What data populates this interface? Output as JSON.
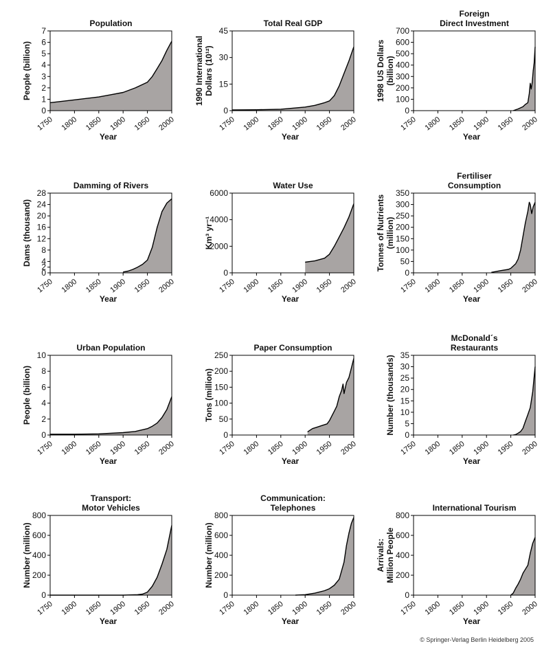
{
  "copyright": "© Springer-Verlag Berlin Heidelberg 2005",
  "style": {
    "fill_color": "#a8a4a3",
    "line_color": "#000000",
    "text_color": "#111111"
  },
  "chart_data": [
    {
      "type": "area",
      "title": [
        "Population"
      ],
      "ylabel": [
        "People (billion)"
      ],
      "xlabel": "Year",
      "xlim": [
        1750,
        2000
      ],
      "xticks": [
        1750,
        1800,
        1850,
        1900,
        1950,
        2000
      ],
      "ylim": [
        0,
        7
      ],
      "yticks": [
        0,
        1,
        2,
        3,
        4,
        5,
        6,
        7
      ],
      "x": [
        1750,
        1800,
        1850,
        1875,
        1900,
        1925,
        1950,
        1960,
        1970,
        1980,
        1990,
        2000
      ],
      "values": [
        0.7,
        0.95,
        1.2,
        1.4,
        1.6,
        2.0,
        2.5,
        3.0,
        3.7,
        4.4,
        5.3,
        6.1
      ]
    },
    {
      "type": "area",
      "title": [
        "Total Real GDP"
      ],
      "ylabel": [
        "1990 International",
        "Dollars (10¹²)"
      ],
      "xlabel": "Year",
      "xlim": [
        1750,
        2000
      ],
      "xticks": [
        1750,
        1800,
        1850,
        1900,
        1950,
        2000
      ],
      "ylim": [
        0,
        45
      ],
      "yticks": [
        0,
        15,
        30,
        45
      ],
      "x": [
        1750,
        1800,
        1850,
        1900,
        1920,
        1940,
        1950,
        1960,
        1970,
        1980,
        1990,
        2000
      ],
      "values": [
        0.4,
        0.5,
        0.8,
        2.0,
        3.0,
        4.5,
        5.5,
        8.5,
        14.0,
        21.0,
        28.0,
        36.0
      ]
    },
    {
      "type": "area",
      "title": [
        "Foreign",
        "Direct Investment"
      ],
      "ylabel": [
        "1998 US Dollars",
        "(billion)"
      ],
      "xlabel": "Year",
      "xlim": [
        1750,
        2000
      ],
      "xticks": [
        1750,
        1800,
        1850,
        1900,
        1950,
        2000
      ],
      "ylim": [
        0,
        700
      ],
      "yticks": [
        0,
        100,
        200,
        300,
        400,
        500,
        600,
        700
      ],
      "x": [
        1955,
        1965,
        1975,
        1980,
        1985,
        1988,
        1990,
        1992,
        1994,
        1996,
        1998,
        2000
      ],
      "values": [
        0,
        15,
        35,
        55,
        70,
        150,
        240,
        190,
        250,
        350,
        420,
        560
      ]
    },
    {
      "type": "area",
      "title": [
        "Damming of Rivers"
      ],
      "ylabel": [
        "Dams (thousand)"
      ],
      "xlabel": "Year",
      "xlim": [
        1750,
        2000
      ],
      "xticks": [
        1750,
        1800,
        1850,
        1900,
        1950,
        2000
      ],
      "ylim": [
        0,
        28
      ],
      "yticks": [
        0,
        2,
        4,
        8,
        12,
        16,
        20,
        24,
        28
      ],
      "x": [
        1900,
        1910,
        1920,
        1930,
        1940,
        1950,
        1960,
        1970,
        1980,
        1990,
        2000
      ],
      "values": [
        0.3,
        0.6,
        1.2,
        2.0,
        3.0,
        4.5,
        9.0,
        16.0,
        21.5,
        24.5,
        26.0
      ]
    },
    {
      "type": "area",
      "title": [
        "Water Use"
      ],
      "ylabel": [
        "Km³ yr⁻¹"
      ],
      "xlabel": "Year",
      "xlim": [
        1750,
        2000
      ],
      "xticks": [
        1750,
        1800,
        1850,
        1900,
        1950,
        2000
      ],
      "ylim": [
        0,
        6000
      ],
      "yticks": [
        0,
        2000,
        4000,
        6000
      ],
      "x": [
        1900,
        1920,
        1940,
        1950,
        1960,
        1970,
        1980,
        1990,
        2000
      ],
      "values": [
        800,
        900,
        1100,
        1400,
        2000,
        2700,
        3400,
        4200,
        5200
      ]
    },
    {
      "type": "area",
      "title": [
        "Fertiliser",
        "Consumption"
      ],
      "ylabel": [
        "Tonnes of Nutrients",
        "(million)"
      ],
      "xlabel": "Year",
      "xlim": [
        1750,
        2000
      ],
      "xticks": [
        1750,
        1800,
        1850,
        1900,
        1950,
        2000
      ],
      "ylim": [
        0,
        350
      ],
      "yticks": [
        0,
        50,
        100,
        150,
        200,
        250,
        300,
        350
      ],
      "x": [
        1910,
        1930,
        1945,
        1950,
        1955,
        1960,
        1965,
        1970,
        1975,
        1980,
        1985,
        1988,
        1990,
        1993,
        1996,
        2000
      ],
      "values": [
        2,
        10,
        15,
        20,
        30,
        40,
        60,
        100,
        160,
        220,
        270,
        310,
        300,
        260,
        290,
        310
      ]
    },
    {
      "type": "area",
      "title": [
        "Urban Population"
      ],
      "ylabel": [
        "People (billion)"
      ],
      "xlabel": "Year",
      "xlim": [
        1750,
        2000
      ],
      "xticks": [
        1750,
        1800,
        1850,
        1900,
        1950,
        2000
      ],
      "ylim": [
        0,
        10
      ],
      "yticks": [
        0,
        2,
        4,
        6,
        8,
        10
      ],
      "x": [
        1750,
        1800,
        1850,
        1900,
        1925,
        1950,
        1960,
        1970,
        1980,
        1990,
        2000
      ],
      "values": [
        0.1,
        0.1,
        0.15,
        0.3,
        0.45,
        0.8,
        1.1,
        1.5,
        2.2,
        3.2,
        4.8
      ]
    },
    {
      "type": "area",
      "title": [
        "Paper Consumption"
      ],
      "ylabel": [
        "Tons (million)"
      ],
      "xlabel": "Year",
      "xlim": [
        1750,
        2000
      ],
      "xticks": [
        1750,
        1800,
        1850,
        1900,
        1950,
        2000
      ],
      "ylim": [
        0,
        250
      ],
      "yticks": [
        0,
        50,
        100,
        150,
        200,
        250
      ],
      "x": [
        1905,
        1915,
        1925,
        1935,
        1945,
        1950,
        1955,
        1960,
        1965,
        1970,
        1975,
        1978,
        1980,
        1985,
        1990,
        1995,
        2000
      ],
      "values": [
        10,
        20,
        25,
        30,
        35,
        45,
        60,
        75,
        90,
        120,
        140,
        160,
        130,
        165,
        180,
        210,
        240
      ]
    },
    {
      "type": "area",
      "title": [
        "McDonald´s",
        "Restaurants"
      ],
      "ylabel": [
        "Number (thousands)"
      ],
      "xlabel": "Year",
      "xlim": [
        1750,
        2000
      ],
      "xticks": [
        1750,
        1800,
        1850,
        1900,
        1950,
        2000
      ],
      "ylim": [
        0,
        35
      ],
      "yticks": [
        0,
        5,
        10,
        15,
        20,
        25,
        30,
        35
      ],
      "x": [
        1955,
        1960,
        1965,
        1970,
        1975,
        1980,
        1985,
        1990,
        1995,
        2000
      ],
      "values": [
        0,
        0.2,
        0.8,
        1.5,
        3.0,
        6.0,
        9.0,
        12.0,
        19.0,
        30.0
      ]
    },
    {
      "type": "area",
      "title": [
        "Transport:",
        "Motor Vehicles"
      ],
      "ylabel": [
        "Number (million)"
      ],
      "xlabel": "Year",
      "xlim": [
        1750,
        2000
      ],
      "xticks": [
        1750,
        1800,
        1850,
        1900,
        1950,
        2000
      ],
      "ylim": [
        0,
        800
      ],
      "yticks": [
        0,
        200,
        400,
        600,
        800
      ],
      "x": [
        1750,
        1850,
        1900,
        1930,
        1940,
        1950,
        1960,
        1970,
        1980,
        1990,
        2000
      ],
      "values": [
        0,
        0,
        0,
        5,
        10,
        30,
        90,
        180,
        310,
        460,
        700
      ]
    },
    {
      "type": "area",
      "title": [
        "Communication:",
        "Telephones"
      ],
      "ylabel": [
        "Number (million)"
      ],
      "xlabel": "Year",
      "xlim": [
        1750,
        2000
      ],
      "xticks": [
        1750,
        1800,
        1850,
        1900,
        1950,
        2000
      ],
      "ylim": [
        0,
        800
      ],
      "yticks": [
        0,
        200,
        400,
        600,
        800
      ],
      "x": [
        1880,
        1900,
        1920,
        1940,
        1950,
        1960,
        1970,
        1980,
        1985,
        1990,
        1995,
        2000
      ],
      "values": [
        0,
        5,
        20,
        45,
        65,
        100,
        160,
        330,
        500,
        620,
        720,
        780
      ]
    },
    {
      "type": "area",
      "title": [
        "International Tourism"
      ],
      "ylabel": [
        "Arrivals:",
        "Million People"
      ],
      "xlabel": "Year",
      "xlim": [
        1750,
        2000
      ],
      "xticks": [
        1750,
        1800,
        1850,
        1900,
        1950,
        2000
      ],
      "ylim": [
        0,
        800
      ],
      "yticks": [
        0,
        200,
        400,
        600,
        800
      ],
      "x": [
        1950,
        1955,
        1960,
        1965,
        1970,
        1975,
        1980,
        1985,
        1990,
        1995,
        2000
      ],
      "values": [
        0,
        20,
        70,
        110,
        160,
        220,
        260,
        300,
        420,
        520,
        580
      ]
    }
  ]
}
